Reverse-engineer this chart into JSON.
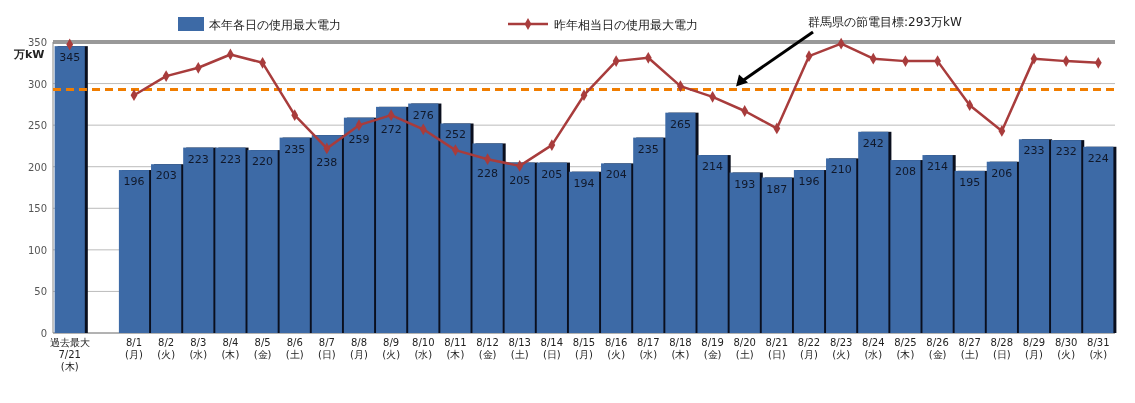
{
  "chart_data": {
    "type": "bar",
    "ylabel": "万kW",
    "legend": "top",
    "grid": "y",
    "categories": [
      "過去最大7/21(木)",
      null,
      "8/1(月)",
      "8/2(火)",
      "8/3(水)",
      "8/4(木)",
      "8/5(金)",
      "8/6(土)",
      "8/7(日)",
      "8/8(月)",
      "8/9(火)",
      "8/10(水)",
      "8/11(木)",
      "8/12(金)",
      "8/13(土)",
      "8/14(日)",
      "8/15(月)",
      "8/16(火)",
      "8/17(水)",
      "8/18(木)",
      "8/19(金)",
      "8/20(土)",
      "8/21(日)",
      "8/22(月)",
      "8/23(火)",
      "8/24(水)",
      "8/25(木)",
      "8/26(金)",
      "8/27(土)",
      "8/28(日)",
      "8/29(月)",
      "8/30(火)",
      "8/31(水)"
    ],
    "ylim": [
      0,
      350
    ],
    "yticks": [
      0,
      50,
      100,
      150,
      200,
      250,
      300,
      350
    ],
    "series": [
      {
        "name": "本年各日の使用最大電力",
        "color": "#3d6aa6",
        "values": [
          345,
          null,
          196,
          203,
          223,
          223,
          220,
          235,
          238,
          259,
          272,
          276,
          252,
          228,
          205,
          205,
          194,
          204,
          235,
          265,
          214,
          193,
          187,
          196,
          210,
          242,
          208,
          214,
          195,
          206,
          233,
          232,
          224
        ],
        "value_labels": [
          "345",
          null,
          "196",
          "203",
          "223",
          "223",
          "220",
          "235",
          "238",
          "259",
          "272",
          "276",
          "252",
          "228",
          "205",
          "205",
          "194",
          "204",
          "235",
          "265",
          "214",
          "193",
          "187",
          "196",
          "210",
          "242",
          "208",
          "214",
          "195",
          "206",
          "233",
          "232",
          "224"
        ]
      },
      {
        "name": "昨年相当日の使用最大電力",
        "type": "line",
        "color": "#a83c3c",
        "marker": "diamond",
        "values": [
          347,
          null,
          286,
          309,
          319,
          335,
          325,
          262,
          222,
          250,
          262,
          245,
          220,
          209,
          201,
          226,
          286,
          327,
          331,
          297,
          284,
          267,
          246,
          333,
          348,
          330,
          327,
          327,
          274,
          243,
          330,
          327,
          325
        ]
      }
    ],
    "ref_lines": [
      {
        "axis": "y",
        "value": 293,
        "label": "群馬県の節電目標:293万kW",
        "color": "#f07d00",
        "line_style": "dashed"
      }
    ]
  }
}
